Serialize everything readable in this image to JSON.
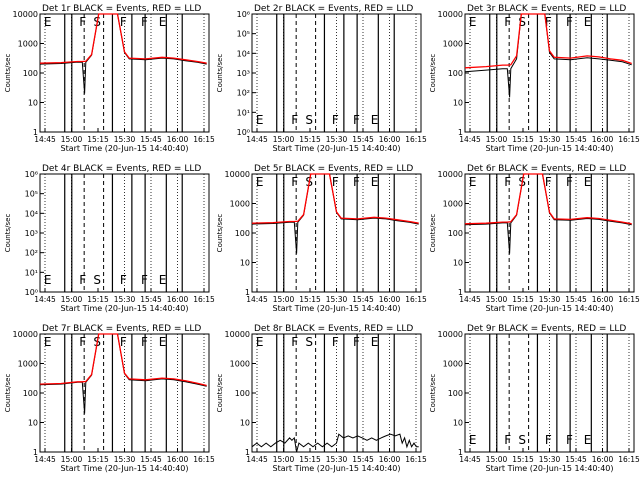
{
  "figure": {
    "background": "#ffffff",
    "colors": {
      "events": "#000000",
      "lld": "#ff0000"
    },
    "x_tick_labels": [
      "14:45",
      "15:00",
      "15:15",
      "15:30",
      "15:45",
      "16:00",
      "16:15"
    ],
    "x_axis_label": "Start Time (20-Jun-15 14:40:40)",
    "y_axis_label": "Counts/sec"
  },
  "chart_data": [
    {
      "type": "line",
      "title": "Det 1r BLACK = Events, RED = LLD",
      "xlabel": "Start Time (20-Jun-15 14:40:40)",
      "ylabel": "Counts/sec",
      "y_scale": "log",
      "ylim": [
        1,
        10000
      ],
      "y_tick_labels": [
        "1",
        "10",
        "100",
        "1000",
        "10000"
      ],
      "markers": [
        "E",
        "F",
        "S",
        "F",
        "F",
        "E"
      ],
      "series": [
        {
          "color": "#000000",
          "points": [
            [
              0,
              200
            ],
            [
              9,
              210
            ],
            [
              16,
              235
            ],
            [
              18,
              230
            ],
            [
              19,
              20
            ],
            [
              19.5,
              230
            ],
            [
              22,
              400
            ],
            [
              25,
              10000
            ],
            [
              33,
              10000
            ],
            [
              36,
              500
            ],
            [
              38,
              300
            ],
            [
              45,
              280
            ],
            [
              52,
              320
            ],
            [
              57,
              300
            ],
            [
              62,
              260
            ],
            [
              67,
              230
            ],
            [
              71,
              200
            ]
          ]
        },
        {
          "color": "#ff0000",
          "points": [
            [
              0,
              215
            ],
            [
              9,
              225
            ],
            [
              16,
              245
            ],
            [
              18,
              245
            ],
            [
              19.5,
              250
            ],
            [
              22,
              420
            ],
            [
              25,
              10000
            ],
            [
              33,
              10000
            ],
            [
              36,
              520
            ],
            [
              38,
              320
            ],
            [
              45,
              300
            ],
            [
              52,
              340
            ],
            [
              57,
              320
            ],
            [
              62,
              280
            ],
            [
              67,
              245
            ],
            [
              71,
              215
            ]
          ]
        }
      ]
    },
    {
      "type": "line",
      "title": "Det 2r BLACK = Events, RED = LLD",
      "xlabel": "Start Time (20-Jun-15 14:40:40)",
      "ylabel": "Counts/sec",
      "y_scale": "log",
      "ylim": [
        1,
        1000000
      ],
      "y_tick_labels": [
        "10⁰",
        "10¹",
        "10²",
        "10³",
        "10⁴",
        "10⁵",
        "10⁶"
      ],
      "markers": [
        "E",
        "F",
        "S",
        "F",
        "F",
        "E"
      ],
      "series": []
    },
    {
      "type": "line",
      "title": "Det 3r BLACK = Events, RED = LLD",
      "xlabel": "Start Time (20-Jun-15 14:40:40)",
      "ylabel": "Counts/sec",
      "y_scale": "log",
      "ylim": [
        1,
        10000
      ],
      "y_tick_labels": [
        "1",
        "10",
        "100",
        "1000",
        "10000"
      ],
      "markers": [
        "E",
        "F",
        "S",
        "F",
        "F",
        "E"
      ],
      "series": [
        {
          "color": "#000000",
          "points": [
            [
              0,
              110
            ],
            [
              9,
              125
            ],
            [
              16,
              140
            ],
            [
              18,
              140
            ],
            [
              19,
              15
            ],
            [
              19.5,
              140
            ],
            [
              22,
              300
            ],
            [
              24,
              10000
            ],
            [
              34,
              10000
            ],
            [
              36,
              500
            ],
            [
              38,
              300
            ],
            [
              45,
              280
            ],
            [
              52,
              330
            ],
            [
              57,
              300
            ],
            [
              62,
              270
            ],
            [
              67,
              240
            ],
            [
              71,
              190
            ]
          ]
        },
        {
          "color": "#ff0000",
          "points": [
            [
              0,
              150
            ],
            [
              9,
              165
            ],
            [
              16,
              185
            ],
            [
              18,
              185
            ],
            [
              19.5,
              190
            ],
            [
              22,
              380
            ],
            [
              24,
              10000
            ],
            [
              34,
              10000
            ],
            [
              36,
              560
            ],
            [
              38,
              340
            ],
            [
              45,
              320
            ],
            [
              52,
              380
            ],
            [
              57,
              350
            ],
            [
              62,
              300
            ],
            [
              67,
              270
            ],
            [
              71,
              210
            ]
          ]
        }
      ]
    },
    {
      "type": "line",
      "title": "Det 4r BLACK = Events, RED = LLD",
      "xlabel": "Start Time (20-Jun-15 14:40:40)",
      "ylabel": "Counts/sec",
      "y_scale": "log",
      "ylim": [
        1,
        1000000
      ],
      "y_tick_labels": [
        "10⁰",
        "10¹",
        "10²",
        "10³",
        "10⁴",
        "10⁵",
        "10⁶"
      ],
      "markers": [
        "E",
        "F",
        "S",
        "F",
        "F",
        "E"
      ],
      "series": []
    },
    {
      "type": "line",
      "title": "Det 5r BLACK = Events, RED = LLD",
      "xlabel": "Start Time (20-Jun-15 14:40:40)",
      "ylabel": "Counts/sec",
      "y_scale": "log",
      "ylim": [
        1,
        10000
      ],
      "y_tick_labels": [
        "1",
        "10",
        "100",
        "1000",
        "10000"
      ],
      "markers": [
        "E",
        "F",
        "S",
        "F",
        "F",
        "E"
      ],
      "series": [
        {
          "color": "#000000",
          "points": [
            [
              0,
              200
            ],
            [
              9,
              210
            ],
            [
              16,
              230
            ],
            [
              18,
              230
            ],
            [
              19,
              20
            ],
            [
              19.5,
              230
            ],
            [
              22,
              400
            ],
            [
              25,
              10000
            ],
            [
              33,
              10000
            ],
            [
              36,
              500
            ],
            [
              38,
              300
            ],
            [
              45,
              280
            ],
            [
              52,
              320
            ],
            [
              57,
              300
            ],
            [
              62,
              260
            ],
            [
              67,
              230
            ],
            [
              71,
              200
            ]
          ]
        },
        {
          "color": "#ff0000",
          "points": [
            [
              0,
              215
            ],
            [
              9,
              225
            ],
            [
              16,
              245
            ],
            [
              18,
              245
            ],
            [
              19.5,
              250
            ],
            [
              22,
              420
            ],
            [
              25,
              10000
            ],
            [
              33,
              10000
            ],
            [
              36,
              520
            ],
            [
              38,
              320
            ],
            [
              45,
              300
            ],
            [
              52,
              340
            ],
            [
              57,
              320
            ],
            [
              62,
              280
            ],
            [
              67,
              245
            ],
            [
              71,
              215
            ]
          ]
        }
      ]
    },
    {
      "type": "line",
      "title": "Det 6r BLACK = Events, RED = LLD",
      "xlabel": "Start Time (20-Jun-15 14:40:40)",
      "ylabel": "Counts/sec",
      "y_scale": "log",
      "ylim": [
        1,
        10000
      ],
      "y_tick_labels": [
        "1",
        "10",
        "100",
        "1000",
        "10000"
      ],
      "markers": [
        "E",
        "F",
        "S",
        "F",
        "F",
        "E"
      ],
      "series": [
        {
          "color": "#000000",
          "points": [
            [
              0,
              190
            ],
            [
              9,
              200
            ],
            [
              16,
              220
            ],
            [
              18,
              220
            ],
            [
              19,
              20
            ],
            [
              19.5,
              220
            ],
            [
              22,
              400
            ],
            [
              25,
              10000
            ],
            [
              33,
              10000
            ],
            [
              36,
              480
            ],
            [
              38,
              280
            ],
            [
              45,
              270
            ],
            [
              52,
              310
            ],
            [
              57,
              290
            ],
            [
              62,
              250
            ],
            [
              67,
              220
            ],
            [
              71,
              190
            ]
          ]
        },
        {
          "color": "#ff0000",
          "points": [
            [
              0,
              205
            ],
            [
              9,
              215
            ],
            [
              16,
              235
            ],
            [
              18,
              235
            ],
            [
              19.5,
              240
            ],
            [
              22,
              420
            ],
            [
              25,
              10000
            ],
            [
              33,
              10000
            ],
            [
              36,
              500
            ],
            [
              38,
              300
            ],
            [
              45,
              290
            ],
            [
              52,
              330
            ],
            [
              57,
              310
            ],
            [
              62,
              270
            ],
            [
              67,
              235
            ],
            [
              71,
              205
            ]
          ]
        }
      ]
    },
    {
      "type": "line",
      "title": "Det 7r BLACK = Events, RED = LLD",
      "xlabel": "Start Time (20-Jun-15 14:40:40)",
      "ylabel": "Counts/sec",
      "y_scale": "log",
      "ylim": [
        1,
        10000
      ],
      "y_tick_labels": [
        "1",
        "10",
        "100",
        "1000",
        "10000"
      ],
      "markers": [
        "E",
        "F",
        "S",
        "F",
        "F",
        "E"
      ],
      "series": [
        {
          "color": "#000000",
          "points": [
            [
              0,
              190
            ],
            [
              9,
              200
            ],
            [
              16,
              230
            ],
            [
              18,
              230
            ],
            [
              19,
              20
            ],
            [
              19.5,
              230
            ],
            [
              22,
              400
            ],
            [
              25,
              10000
            ],
            [
              33,
              10000
            ],
            [
              36,
              450
            ],
            [
              38,
              280
            ],
            [
              45,
              260
            ],
            [
              52,
              300
            ],
            [
              57,
              280
            ],
            [
              62,
              240
            ],
            [
              67,
              200
            ],
            [
              71,
              170
            ]
          ]
        },
        {
          "color": "#ff0000",
          "points": [
            [
              0,
              200
            ],
            [
              9,
              210
            ],
            [
              16,
              240
            ],
            [
              18,
              240
            ],
            [
              19.5,
              245
            ],
            [
              22,
              420
            ],
            [
              25,
              10000
            ],
            [
              33,
              10000
            ],
            [
              36,
              470
            ],
            [
              38,
              300
            ],
            [
              45,
              280
            ],
            [
              52,
              320
            ],
            [
              57,
              300
            ],
            [
              62,
              260
            ],
            [
              67,
              215
            ],
            [
              71,
              180
            ]
          ]
        }
      ]
    },
    {
      "type": "line",
      "title": "Det 8r BLACK = Events, RED = LLD",
      "xlabel": "Start Time (20-Jun-15 14:40:40)",
      "ylabel": "Counts/sec",
      "y_scale": "log",
      "ylim": [
        1,
        10000
      ],
      "y_tick_labels": [
        "1",
        "10",
        "100",
        "1000",
        "10000"
      ],
      "markers": [
        "E",
        "F",
        "S",
        "F",
        "F",
        "E"
      ],
      "series": [
        {
          "color": "#000000",
          "points": [
            [
              0,
              1.5
            ],
            [
              2,
              2
            ],
            [
              4,
              1.5
            ],
            [
              6,
              2
            ],
            [
              8,
              1.5
            ],
            [
              10,
              2
            ],
            [
              12,
              2.5
            ],
            [
              14,
              2
            ],
            [
              16,
              3
            ],
            [
              17,
              2.5
            ],
            [
              18,
              3
            ],
            [
              19,
              1
            ],
            [
              20,
              2
            ],
            [
              22,
              1.5
            ],
            [
              24,
              2
            ],
            [
              26,
              1.5
            ],
            [
              28,
              2
            ],
            [
              30,
              1.5
            ],
            [
              32,
              2
            ],
            [
              34,
              1.5
            ],
            [
              36,
              2
            ],
            [
              37,
              4
            ],
            [
              39,
              3
            ],
            [
              41,
              3.5
            ],
            [
              43,
              3
            ],
            [
              45,
              3.5
            ],
            [
              47,
              3
            ],
            [
              49,
              2.5
            ],
            [
              51,
              3
            ],
            [
              53,
              2.5
            ],
            [
              55,
              3
            ],
            [
              57,
              3.5
            ],
            [
              59,
              4
            ],
            [
              61,
              3.5
            ],
            [
              63,
              4
            ],
            [
              64,
              2
            ],
            [
              65,
              3
            ],
            [
              66,
              1.5
            ],
            [
              67,
              2.5
            ],
            [
              68,
              1.5
            ],
            [
              69,
              2
            ],
            [
              70,
              1.5
            ],
            [
              71,
              1.5
            ]
          ]
        }
      ]
    },
    {
      "type": "line",
      "title": "Det 9r BLACK = Events, RED = LLD",
      "xlabel": "Start Time (20-Jun-15 14:40:40)",
      "ylabel": "Counts/sec",
      "y_scale": "log",
      "ylim": [
        1,
        10000
      ],
      "y_tick_labels": [
        "1",
        "10",
        "100",
        "1000",
        "10000"
      ],
      "markers": [
        "E",
        "F",
        "S",
        "F",
        "F",
        "E"
      ],
      "series": []
    }
  ]
}
